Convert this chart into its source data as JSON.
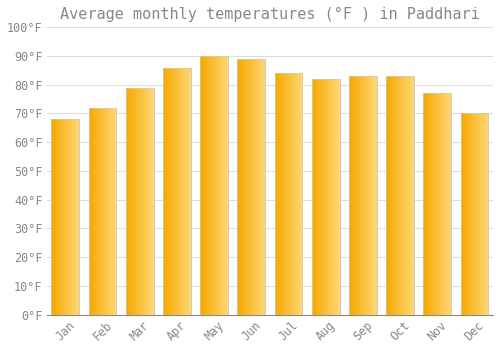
{
  "title": "Average monthly temperatures (°F ) in Paddhari",
  "months": [
    "Jan",
    "Feb",
    "Mar",
    "Apr",
    "May",
    "Jun",
    "Jul",
    "Aug",
    "Sep",
    "Oct",
    "Nov",
    "Dec"
  ],
  "values": [
    68,
    72,
    79,
    86,
    90,
    89,
    84,
    82,
    83,
    83,
    77,
    70
  ],
  "bar_color_left": "#F5A800",
  "bar_color_right": "#FFD060",
  "bar_edge_color": "#CCCCCC",
  "background_color": "#FFFFFF",
  "grid_color": "#DDDDDD",
  "text_color": "#888888",
  "ylim": [
    0,
    100
  ],
  "yticks": [
    0,
    10,
    20,
    30,
    40,
    50,
    60,
    70,
    80,
    90,
    100
  ],
  "ytick_labels": [
    "0°F",
    "10°F",
    "20°F",
    "30°F",
    "40°F",
    "50°F",
    "60°F",
    "70°F",
    "80°F",
    "90°F",
    "100°F"
  ],
  "title_fontsize": 11,
  "tick_fontsize": 8.5,
  "font_family": "monospace",
  "bar_width": 0.75
}
